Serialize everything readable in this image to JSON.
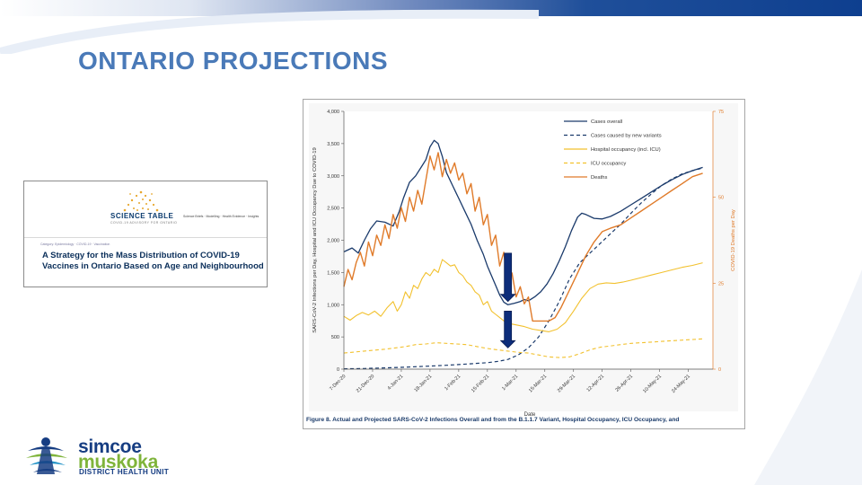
{
  "slide": {
    "title": "ONTARIO PROJECTIONS"
  },
  "thumbnail": {
    "logo_text": "SCIENCE TABLE",
    "logo_subtext": "COVID-19 ADVISORY FOR ONTARIO",
    "tagline": "Science Briefs · Modelling · Health Evidence · Insights",
    "category": "Category: Epidemiology · COVID-19 · Vaccination",
    "heading": "A Strategy for the Mass Distribution of COVID-19 Vaccines in Ontario Based on Age and Neighbourhood"
  },
  "logo": {
    "name_line1": "simcoe",
    "name_line2": "muskoka",
    "subtitle": "DISTRICT HEALTH UNIT"
  },
  "chart_caption": "Figure 8. Actual and Projected SARS-CoV-2 Infections Overall and from the B.1.1.7 Variant, Hospital Occupancy, ICU Occupancy, and",
  "colors": {
    "cases_overall": "#1a3a6b",
    "new_variants": "#1a3a6b",
    "hospital": "#f2c12e",
    "icu": "#f2c12e",
    "deaths": "#e07b2a",
    "arrow": "#0d2d7a"
  },
  "chart_data": {
    "type": "line",
    "xlabel": "Date",
    "ylabel": "SARS-CoV-2 Infections per Day, Hospital and ICU Occupancy Due to COVID-19",
    "y2label": "COVID-19 Deaths per Day",
    "ylim": [
      0,
      4000
    ],
    "y2lim": [
      0,
      75
    ],
    "yticks": [
      "0",
      "500",
      "1,000",
      "1,500",
      "2,000",
      "2,500",
      "3,000",
      "3,500",
      "4,000"
    ],
    "y2ticks": [
      "0",
      "25",
      "50",
      "75"
    ],
    "xticks": [
      "7-Dec-20",
      "21-Dec-20",
      "4-Jan-21",
      "18-Jan-21",
      "1-Feb-21",
      "15-Feb-21",
      "1-Mar-21",
      "15-Mar-21",
      "29-Mar-21",
      "12-Apr-21",
      "26-Apr-21",
      "10-May-21",
      "24-May-21"
    ],
    "x_days_range": [
      0,
      180
    ],
    "legend_position": "top-right",
    "series": [
      {
        "name": "Cases overall",
        "axis": "left",
        "style": "solid",
        "points": [
          [
            0,
            1820
          ],
          [
            4,
            1880
          ],
          [
            7,
            1800
          ],
          [
            10,
            2000
          ],
          [
            13,
            2180
          ],
          [
            16,
            2300
          ],
          [
            20,
            2280
          ],
          [
            24,
            2220
          ],
          [
            27,
            2450
          ],
          [
            29,
            2650
          ],
          [
            32,
            2900
          ],
          [
            35,
            3000
          ],
          [
            38,
            3150
          ],
          [
            40,
            3250
          ],
          [
            42,
            3450
          ],
          [
            44,
            3550
          ],
          [
            46,
            3500
          ],
          [
            48,
            3300
          ],
          [
            50,
            3050
          ],
          [
            53,
            2850
          ],
          [
            56,
            2650
          ],
          [
            59,
            2450
          ],
          [
            62,
            2250
          ],
          [
            65,
            2000
          ],
          [
            68,
            1780
          ],
          [
            70,
            1600
          ],
          [
            72,
            1450
          ],
          [
            74,
            1300
          ],
          [
            76,
            1150
          ],
          [
            78,
            1040
          ],
          [
            80,
            1000
          ],
          [
            83,
            1020
          ],
          [
            86,
            1050
          ],
          [
            88,
            1080
          ],
          [
            90,
            1060
          ],
          [
            93,
            1120
          ],
          [
            96,
            1200
          ],
          [
            99,
            1320
          ],
          [
            102,
            1480
          ],
          [
            105,
            1680
          ],
          [
            108,
            1900
          ],
          [
            111,
            2150
          ],
          [
            114,
            2360
          ],
          [
            116,
            2420
          ],
          [
            118,
            2400
          ],
          [
            122,
            2340
          ],
          [
            126,
            2330
          ],
          [
            130,
            2370
          ],
          [
            135,
            2450
          ],
          [
            140,
            2550
          ],
          [
            145,
            2650
          ],
          [
            150,
            2750
          ],
          [
            155,
            2850
          ],
          [
            160,
            2940
          ],
          [
            165,
            3020
          ],
          [
            170,
            3080
          ],
          [
            175,
            3130
          ]
        ]
      },
      {
        "name": "Cases caused by new variants",
        "axis": "left",
        "style": "dashed",
        "points": [
          [
            0,
            5
          ],
          [
            10,
            10
          ],
          [
            20,
            20
          ],
          [
            30,
            30
          ],
          [
            40,
            45
          ],
          [
            50,
            60
          ],
          [
            60,
            80
          ],
          [
            70,
            100
          ],
          [
            75,
            120
          ],
          [
            80,
            150
          ],
          [
            85,
            220
          ],
          [
            90,
            330
          ],
          [
            95,
            500
          ],
          [
            100,
            750
          ],
          [
            105,
            1050
          ],
          [
            110,
            1400
          ],
          [
            115,
            1650
          ],
          [
            120,
            1800
          ],
          [
            125,
            1950
          ],
          [
            130,
            2100
          ],
          [
            135,
            2250
          ],
          [
            140,
            2420
          ],
          [
            145,
            2580
          ],
          [
            150,
            2720
          ],
          [
            155,
            2850
          ],
          [
            160,
            2950
          ],
          [
            165,
            3030
          ],
          [
            170,
            3080
          ],
          [
            175,
            3120
          ]
        ]
      },
      {
        "name": "Hospital occupancy (incl. ICU)",
        "axis": "left",
        "style": "solid",
        "points": [
          [
            0,
            820
          ],
          [
            3,
            760
          ],
          [
            6,
            830
          ],
          [
            9,
            880
          ],
          [
            12,
            840
          ],
          [
            15,
            900
          ],
          [
            18,
            820
          ],
          [
            21,
            950
          ],
          [
            24,
            1050
          ],
          [
            26,
            900
          ],
          [
            28,
            1000
          ],
          [
            30,
            1200
          ],
          [
            32,
            1100
          ],
          [
            34,
            1300
          ],
          [
            36,
            1250
          ],
          [
            38,
            1400
          ],
          [
            40,
            1500
          ],
          [
            42,
            1450
          ],
          [
            44,
            1550
          ],
          [
            46,
            1500
          ],
          [
            48,
            1700
          ],
          [
            50,
            1650
          ],
          [
            52,
            1600
          ],
          [
            54,
            1620
          ],
          [
            56,
            1500
          ],
          [
            58,
            1450
          ],
          [
            60,
            1350
          ],
          [
            62,
            1300
          ],
          [
            64,
            1200
          ],
          [
            66,
            1150
          ],
          [
            68,
            1000
          ],
          [
            70,
            1050
          ],
          [
            72,
            900
          ],
          [
            74,
            850
          ],
          [
            76,
            800
          ],
          [
            78,
            750
          ],
          [
            80,
            720
          ],
          [
            82,
            700
          ],
          [
            85,
            680
          ],
          [
            88,
            660
          ],
          [
            92,
            620
          ],
          [
            96,
            600
          ],
          [
            100,
            580
          ],
          [
            104,
            620
          ],
          [
            108,
            720
          ],
          [
            112,
            900
          ],
          [
            116,
            1100
          ],
          [
            120,
            1250
          ],
          [
            124,
            1320
          ],
          [
            128,
            1340
          ],
          [
            132,
            1330
          ],
          [
            136,
            1350
          ],
          [
            140,
            1380
          ],
          [
            145,
            1420
          ],
          [
            150,
            1460
          ],
          [
            155,
            1500
          ],
          [
            160,
            1540
          ],
          [
            165,
            1580
          ],
          [
            170,
            1610
          ],
          [
            175,
            1650
          ]
        ]
      },
      {
        "name": "ICU occupancy",
        "axis": "left",
        "style": "dashed",
        "points": [
          [
            0,
            250
          ],
          [
            10,
            280
          ],
          [
            20,
            310
          ],
          [
            30,
            350
          ],
          [
            35,
            380
          ],
          [
            40,
            390
          ],
          [
            45,
            410
          ],
          [
            50,
            400
          ],
          [
            55,
            390
          ],
          [
            60,
            380
          ],
          [
            65,
            350
          ],
          [
            70,
            320
          ],
          [
            75,
            300
          ],
          [
            80,
            280
          ],
          [
            85,
            260
          ],
          [
            90,
            250
          ],
          [
            95,
            220
          ],
          [
            100,
            190
          ],
          [
            105,
            180
          ],
          [
            110,
            190
          ],
          [
            115,
            240
          ],
          [
            120,
            300
          ],
          [
            125,
            340
          ],
          [
            130,
            360
          ],
          [
            135,
            380
          ],
          [
            140,
            400
          ],
          [
            145,
            410
          ],
          [
            150,
            420
          ],
          [
            155,
            430
          ],
          [
            160,
            440
          ],
          [
            165,
            450
          ],
          [
            170,
            460
          ],
          [
            175,
            470
          ]
        ]
      },
      {
        "name": "Deaths",
        "axis": "right",
        "style": "solid",
        "points": [
          [
            0,
            24
          ],
          [
            2,
            29
          ],
          [
            4,
            26
          ],
          [
            6,
            31
          ],
          [
            8,
            34
          ],
          [
            10,
            30
          ],
          [
            12,
            37
          ],
          [
            14,
            33
          ],
          [
            16,
            39
          ],
          [
            18,
            36
          ],
          [
            20,
            42
          ],
          [
            22,
            38
          ],
          [
            24,
            45
          ],
          [
            26,
            41
          ],
          [
            28,
            47
          ],
          [
            30,
            43
          ],
          [
            32,
            50
          ],
          [
            34,
            46
          ],
          [
            36,
            52
          ],
          [
            38,
            48
          ],
          [
            40,
            55
          ],
          [
            42,
            62
          ],
          [
            44,
            58
          ],
          [
            46,
            63
          ],
          [
            48,
            56
          ],
          [
            50,
            61
          ],
          [
            52,
            57
          ],
          [
            54,
            60
          ],
          [
            56,
            55
          ],
          [
            58,
            57
          ],
          [
            60,
            51
          ],
          [
            62,
            54
          ],
          [
            64,
            46
          ],
          [
            66,
            50
          ],
          [
            68,
            42
          ],
          [
            70,
            45
          ],
          [
            72,
            36
          ],
          [
            74,
            39
          ],
          [
            76,
            30
          ],
          [
            78,
            34
          ],
          [
            80,
            24
          ],
          [
            82,
            28
          ],
          [
            84,
            21
          ],
          [
            86,
            24
          ],
          [
            88,
            19
          ],
          [
            90,
            21
          ],
          [
            92,
            14
          ],
          [
            94,
            14
          ],
          [
            96,
            14
          ],
          [
            100,
            14
          ],
          [
            103,
            15
          ],
          [
            106,
            18
          ],
          [
            110,
            23
          ],
          [
            114,
            28
          ],
          [
            118,
            33
          ],
          [
            122,
            37
          ],
          [
            126,
            40
          ],
          [
            130,
            41
          ],
          [
            135,
            42
          ],
          [
            140,
            44
          ],
          [
            145,
            46
          ],
          [
            150,
            48
          ],
          [
            155,
            50
          ],
          [
            160,
            52
          ],
          [
            165,
            54
          ],
          [
            170,
            56
          ],
          [
            175,
            57
          ]
        ]
      }
    ],
    "annotations": [
      {
        "type": "arrow-down",
        "x_day": 80,
        "y_from": 1800,
        "y_to": 1050
      },
      {
        "type": "arrow-down",
        "x_day": 80,
        "y_from": 900,
        "y_to": 330
      }
    ]
  }
}
